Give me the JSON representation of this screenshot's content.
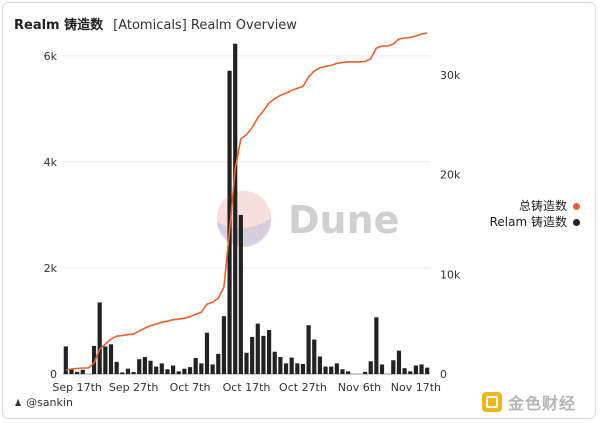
{
  "title": {
    "metric": "Realm 铸造数",
    "subtitle": "[Atomicals] Realm Overview"
  },
  "legend": [
    {
      "label": "总铸造数",
      "color": "#e8602c"
    },
    {
      "label": "Relam 铸造数",
      "color": "#222222"
    }
  ],
  "author": "@sankin",
  "brand": "金色财经",
  "watermark": "Dune",
  "chart_data": {
    "type": "bar",
    "x_start": "Sep 15",
    "x_ticks": [
      "Sep 17th",
      "Sep 27th",
      "Oct 7th",
      "Oct 17th",
      "Oct 27th",
      "Nov 6th",
      "Nov 17th"
    ],
    "y_left": {
      "ticks": [
        "0",
        "2k",
        "4k",
        "6k"
      ],
      "range": [
        0,
        6300
      ]
    },
    "y_right": {
      "ticks": [
        "0",
        "10k",
        "20k",
        "30k"
      ],
      "range": [
        0,
        33500
      ]
    },
    "series": [
      {
        "name": "Relam 铸造数",
        "type": "bar",
        "axis": "left",
        "color": "#222222",
        "values": [
          520,
          100,
          40,
          80,
          0,
          530,
          1350,
          520,
          560,
          230,
          30,
          100,
          40,
          280,
          320,
          250,
          140,
          200,
          90,
          160,
          50,
          100,
          130,
          300,
          200,
          780,
          180,
          380,
          1090,
          5720,
          6230,
          3000,
          400,
          700,
          950,
          720,
          830,
          420,
          320,
          200,
          310,
          200,
          190,
          920,
          650,
          330,
          140,
          140,
          200,
          90,
          50,
          0,
          0,
          40,
          240,
          1070,
          180,
          0,
          260,
          440,
          110,
          50,
          160,
          180,
          120
        ]
      },
      {
        "name": "总铸造数",
        "type": "line",
        "axis": "right",
        "color": "#e8602c",
        "values": [
          400,
          500,
          550,
          600,
          600,
          1100,
          2500,
          3000,
          3500,
          3800,
          3850,
          3950,
          4000,
          4300,
          4600,
          4850,
          5000,
          5200,
          5300,
          5450,
          5500,
          5600,
          5750,
          6000,
          6200,
          7000,
          7200,
          7600,
          8700,
          14400,
          20600,
          23600,
          24000,
          24700,
          25700,
          26400,
          27200,
          27600,
          27950,
          28150,
          28450,
          28650,
          28850,
          29800,
          30400,
          30700,
          30850,
          30950,
          31150,
          31250,
          31300,
          31300,
          31300,
          31350,
          31600,
          32700,
          32900,
          32900,
          33100,
          33600,
          33700,
          33750,
          33900,
          34100,
          34200
        ]
      }
    ],
    "grid": "horizontal",
    "legend_position": "right"
  }
}
